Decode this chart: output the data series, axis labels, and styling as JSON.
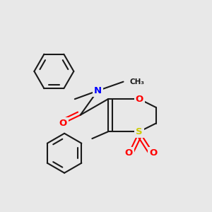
{
  "background_color": "#e8e8e8",
  "bond_color": "#1a1a1a",
  "N_color": "#0000ff",
  "O_color": "#ff0000",
  "S_color": "#cccc00",
  "bond_width": 1.5,
  "figsize": [
    3.0,
    3.0
  ],
  "dpi": 100,
  "xlim": [
    0,
    10
  ],
  "ylim": [
    0,
    10
  ]
}
